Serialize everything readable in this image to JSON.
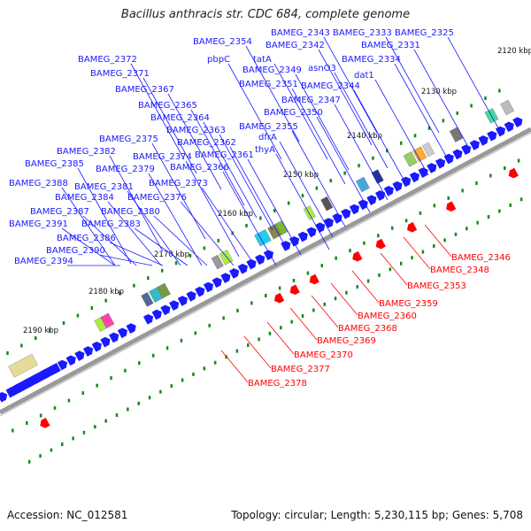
{
  "title": "Bacillus anthracis str. CDC 684, complete genome",
  "footer": {
    "accession": "Accession: NC_012581",
    "summary": "Topology: circular; Length: 5,230,115 bp; Genes: 5,708"
  },
  "colors": {
    "forward": "#1a1aff",
    "reverse": "#ff0000",
    "backbone": "#999999",
    "gc_marks": "#1a8a1a"
  },
  "kbp_ticks": [
    "2120 kbp",
    "2130 kbp",
    "2140 kbp",
    "2150 kbp",
    "2160 kbp",
    "2170 kbp",
    "2180 kbp",
    "2190 kbp"
  ],
  "forward_genes": [
    "BAMEG_2354",
    "BAMEG_2343",
    "BAMEG_2333",
    "BAMEG_2325",
    "BAMEG_2342",
    "BAMEG_2331",
    "BAMEG_2372",
    "pbpC",
    "tatA",
    "BAMEG_2334",
    "BAMEG_2371",
    "BAMEG_2349",
    "asnO3",
    "dat1",
    "BAMEG_2367",
    "BAMEG_2351",
    "BAMEG_2344",
    "BAMEG_2347",
    "BAMEG_2365",
    "BAMEG_2350",
    "BAMEG_2364",
    "BAMEG_2355",
    "BAMEG_2363",
    "dfrA",
    "BAMEG_2375",
    "BAMEG_2362",
    "thyA",
    "BAMEG_2382",
    "BAMEG_2374",
    "BAMEG_2361",
    "BAMEG_2385",
    "BAMEG_2379",
    "BAMEG_2366",
    "BAMEG_2388",
    "BAMEG_2381",
    "BAMEG_2373",
    "BAMEG_2384",
    "BAMEG_2376",
    "BAMEG_2387",
    "BAMEG_2380",
    "BAMEG_2391",
    "BAMEG_2383",
    "BAMEG_2386",
    "BAMEG_2390",
    "BAMEG_2394"
  ],
  "reverse_genes": [
    "BAMEG_2346",
    "BAMEG_2348",
    "BAMEG_2353",
    "BAMEG_2359",
    "BAMEG_2360",
    "BAMEG_2368",
    "BAMEG_2369",
    "BAMEG_2370",
    "BAMEG_2377",
    "BAMEG_2378"
  ]
}
